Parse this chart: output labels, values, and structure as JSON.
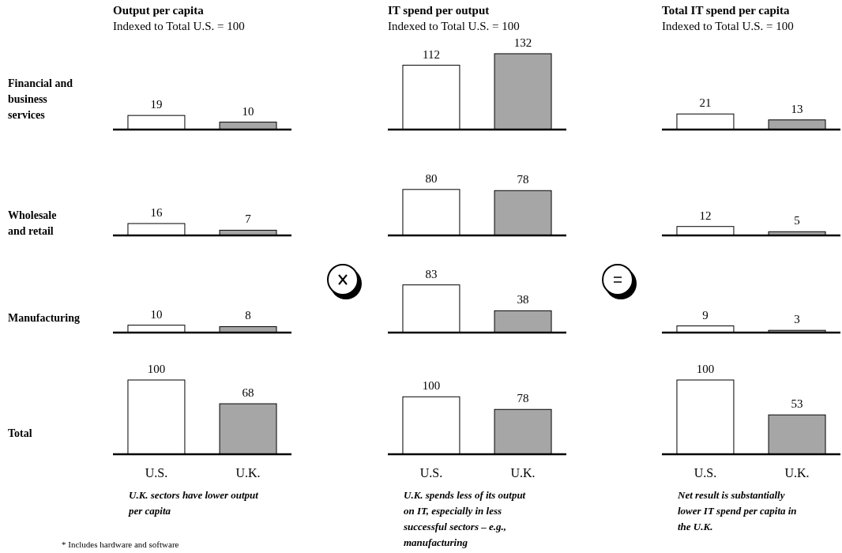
{
  "chart_data": [
    {
      "type": "bar",
      "title": "Output per capita",
      "subtitle": "Indexed to Total U.S. = 100",
      "ylabel": "Financial and business services",
      "categories": [
        null,
        null
      ],
      "values": [
        19,
        10
      ],
      "colors": [
        "#ffffff",
        "#a6a6a6"
      ],
      "data_labels": true,
      "tick_labels": false
    },
    {
      "type": "bar",
      "title": "IT spend per output",
      "subtitle": "Indexed to Total U.S. = 100",
      "categories": [
        null,
        null
      ],
      "values": [
        112,
        132
      ],
      "colors": [
        "#ffffff",
        "#a6a6a6"
      ],
      "data_labels": true,
      "tick_labels": false
    },
    {
      "type": "bar",
      "title": "Total IT spend per capita",
      "subtitle": "Indexed to Total U.S. = 100",
      "categories": [
        null,
        null
      ],
      "values": [
        21,
        13
      ],
      "colors": [
        "#ffffff",
        "#a6a6a6"
      ],
      "data_labels": true,
      "tick_labels": false
    },
    {
      "type": "bar",
      "ylabel": "Wholesale and retail",
      "categories": [
        null,
        null
      ],
      "values": [
        16,
        7
      ],
      "colors": [
        "#ffffff",
        "#a6a6a6"
      ],
      "data_labels": true,
      "tick_labels": false
    },
    {
      "type": "bar",
      "categories": [
        null,
        null
      ],
      "values": [
        80,
        78
      ],
      "colors": [
        "#ffffff",
        "#a6a6a6"
      ],
      "data_labels": true,
      "tick_labels": false
    },
    {
      "type": "bar",
      "categories": [
        null,
        null
      ],
      "values": [
        12,
        5
      ],
      "colors": [
        "#ffffff",
        "#a6a6a6"
      ],
      "data_labels": true,
      "tick_labels": false
    },
    {
      "type": "bar",
      "ylabel": "Manufacturing",
      "categories": [
        null,
        null
      ],
      "values": [
        10,
        8
      ],
      "colors": [
        "#ffffff",
        "#a6a6a6"
      ],
      "data_labels": true,
      "tick_labels": false
    },
    {
      "type": "bar",
      "categories": [
        null,
        null
      ],
      "values": [
        83,
        38
      ],
      "colors": [
        "#ffffff",
        "#a6a6a6"
      ],
      "data_labels": true,
      "tick_labels": false
    },
    {
      "type": "bar",
      "categories": [
        null,
        null
      ],
      "values": [
        9,
        3
      ],
      "colors": [
        "#ffffff",
        "#a6a6a6"
      ],
      "data_labels": true,
      "tick_labels": false
    },
    {
      "type": "bar",
      "ylabel": "Total",
      "categories": [
        "U.S.",
        "U.K."
      ],
      "values": [
        100,
        68
      ],
      "colors": [
        "#ffffff",
        "#a6a6a6"
      ],
      "data_labels": true,
      "tick_labels": "x",
      "annotations": [
        "U.K. sectors have lower output per capita",
        "* Includes hardware and software"
      ]
    },
    {
      "type": "bar",
      "categories": [
        "U.S.",
        "U.K."
      ],
      "values": [
        100,
        78
      ],
      "colors": [
        "#ffffff",
        "#a6a6a6"
      ],
      "data_labels": true,
      "tick_labels": "x",
      "annotations": [
        "U.K. spends less of its output on IT, especially in less successful sectors – e.g., manufacturing"
      ]
    },
    {
      "type": "bar",
      "categories": [
        "U.S.",
        "U.K."
      ],
      "values": [
        100,
        53
      ],
      "colors": [
        "#ffffff",
        "#a6a6a6"
      ],
      "data_labels": true,
      "tick_labels": "x",
      "annotations": [
        "Net result is substantially lower IT spend per capita in the U.K."
      ]
    }
  ]
}
